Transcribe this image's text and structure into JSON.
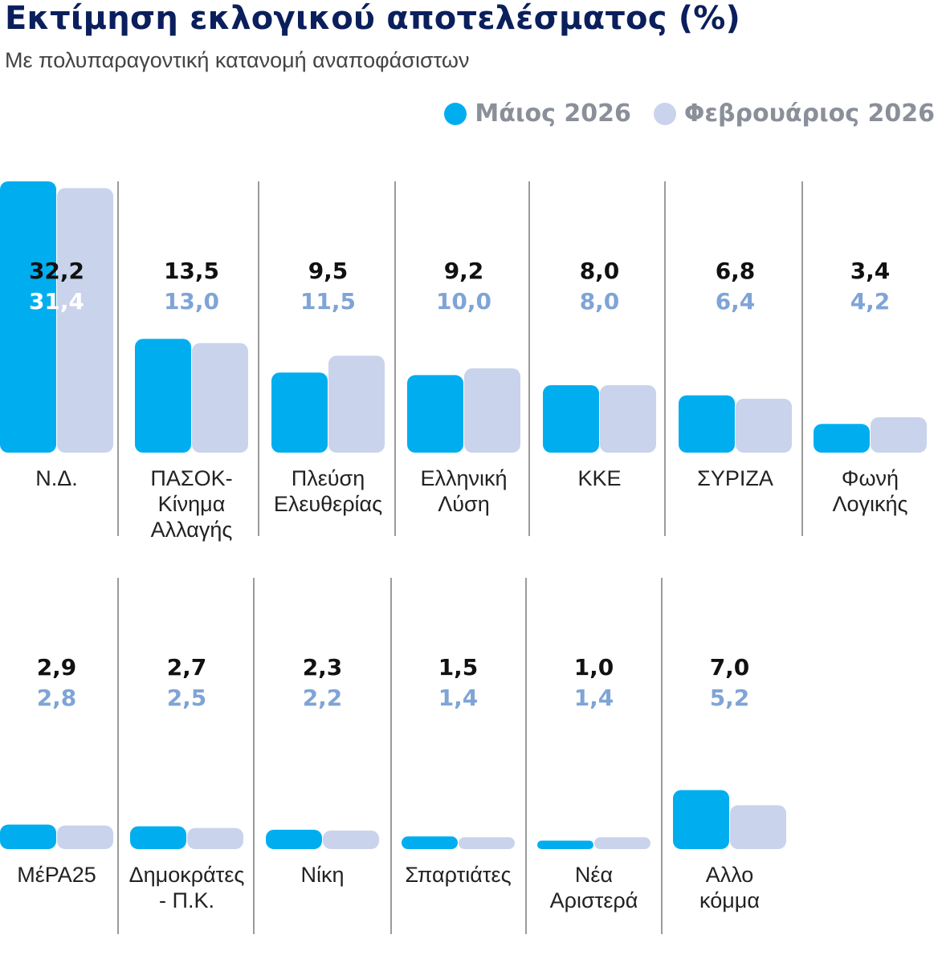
{
  "title": "Εκτίμηση εκλογικού αποτελέσματος (%)",
  "subtitle": "Με πολυπαραγοντική κατανομή αναποφάσιστων",
  "legend": [
    {
      "label": "Μάιος 2026",
      "color": "#00aeef"
    },
    {
      "label": "Φεβρουάριος 2026",
      "color": "#c9d3ec"
    }
  ],
  "chart_data": {
    "type": "bar",
    "title": "Εκτίμηση εκλογικού αποτελέσματος (%)",
    "subtitle": "Με πολυπαραγοντική κατανομή αναποφάσιστων",
    "legend_placement": "top-right",
    "categories": [
      "Ν.Δ.",
      "ΠΑΣΟΚ-Κίνημα Αλλαγής",
      "Πλεύση Ελευθερίας",
      "Ελληνική Λύση",
      "ΚΚΕ",
      "ΣΥΡΙΖΑ",
      "Φωνή Λογικής",
      "ΜέΡΑ25",
      "Δημοκράτες - Π.Κ.",
      "Νίκη",
      "Σπαρτιάτες",
      "Νέα Αριστερά",
      "Αλλο κόμμα"
    ],
    "category_lines": [
      [
        "Ν.Δ."
      ],
      [
        "ΠΑΣΟΚ-",
        "Κίνημα",
        "Αλλαγής"
      ],
      [
        "Πλεύση",
        "Ελευθερίας"
      ],
      [
        "Ελληνική",
        "Λύση"
      ],
      [
        "ΚΚΕ"
      ],
      [
        "ΣΥΡΙΖΑ"
      ],
      [
        "Φωνή",
        "Λογικής"
      ],
      [
        "ΜέΡΑ25"
      ],
      [
        "Δημοκράτες",
        "- Π.Κ."
      ],
      [
        "Νίκη"
      ],
      [
        "Σπαρτιάτες"
      ],
      [
        "Νέα",
        "Αριστερά"
      ],
      [
        "Αλλο",
        "κόμμα"
      ]
    ],
    "series": [
      {
        "name": "Μάιος 2026",
        "color": "#00aeef",
        "values": [
          32.2,
          13.5,
          9.5,
          9.2,
          8.0,
          6.8,
          3.4,
          2.9,
          2.7,
          2.3,
          1.5,
          1.0,
          7.0
        ],
        "labels": [
          "32,2",
          "13,5",
          "9,5",
          "9,2",
          "8,0",
          "6,8",
          "3,4",
          "2,9",
          "2,7",
          "2,3",
          "1,5",
          "1,0",
          "7,0"
        ]
      },
      {
        "name": "Φεβρουάριος 2026",
        "color": "#c9d3ec",
        "values": [
          31.4,
          13.0,
          11.5,
          10.0,
          8.0,
          6.4,
          4.2,
          2.8,
          2.5,
          2.2,
          1.4,
          1.4,
          5.2
        ],
        "labels": [
          "31,4",
          "13,0",
          "11,5",
          "10,0",
          "8,0",
          "6,4",
          "4,2",
          "2,8",
          "2,5",
          "2,2",
          "1,4",
          "1,4",
          "5,2"
        ]
      }
    ],
    "rows": [
      [
        0,
        7
      ],
      [
        7,
        13
      ]
    ],
    "ylim": [
      0,
      32.2
    ],
    "grid": false
  }
}
